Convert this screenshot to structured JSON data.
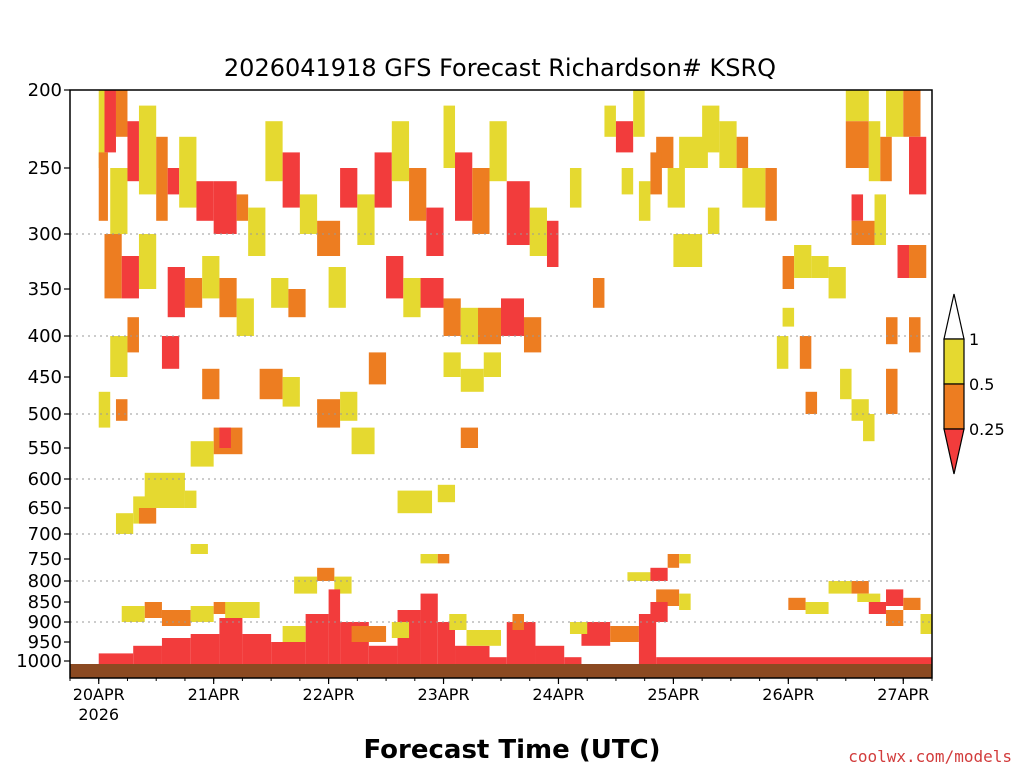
{
  "chart_data": {
    "type": "heatmap",
    "title": "2026041918 GFS Forecast Richardson# KSRQ",
    "xlabel": "Forecast Time (UTC)",
    "ylabel": "",
    "x_ticks": [
      {
        "label": "20APR",
        "sub": "2026",
        "day": 0
      },
      {
        "label": "21APR",
        "sub": "",
        "day": 1
      },
      {
        "label": "22APR",
        "sub": "",
        "day": 2
      },
      {
        "label": "23APR",
        "sub": "",
        "day": 3
      },
      {
        "label": "24APR",
        "sub": "",
        "day": 4
      },
      {
        "label": "25APR",
        "sub": "",
        "day": 5
      },
      {
        "label": "26APR",
        "sub": "",
        "day": 6
      },
      {
        "label": "27APR",
        "sub": "",
        "day": 7
      }
    ],
    "x_start_day": -0.25,
    "x_end_day": 7.25,
    "y_scale": "pressure (inverted, log-like)",
    "y_ticks": [
      200,
      250,
      300,
      350,
      400,
      450,
      500,
      550,
      600,
      650,
      700,
      750,
      800,
      850,
      900,
      950,
      1000
    ],
    "gridlines_at": [
      300,
      400,
      500,
      600,
      700,
      800,
      900
    ],
    "legend": {
      "placement": "right",
      "labels": [
        "1",
        "0.5",
        "0.25"
      ],
      "bins": [
        {
          "range": "0.5-1",
          "color": "#e5d930"
        },
        {
          "range": "0.25-0.5",
          "color": "#ed7d21"
        },
        {
          "range": "<0.25",
          "color": "#f23c3c"
        }
      ]
    },
    "colors": {
      "yellow": "#e5d930",
      "orange": "#ed7d21",
      "red": "#f23c3c",
      "ground": "#8b4a22"
    },
    "cells": [
      [
        0.0,
        200,
        0.05,
        250,
        "yellow"
      ],
      [
        0.05,
        200,
        0.15,
        240,
        "red"
      ],
      [
        0.15,
        200,
        0.25,
        230,
        "orange"
      ],
      [
        0.0,
        240,
        0.08,
        290,
        "orange"
      ],
      [
        0.1,
        250,
        0.25,
        300,
        "yellow"
      ],
      [
        0.25,
        220,
        0.35,
        260,
        "red"
      ],
      [
        0.35,
        210,
        0.5,
        270,
        "yellow"
      ],
      [
        0.5,
        230,
        0.6,
        290,
        "orange"
      ],
      [
        0.6,
        250,
        0.7,
        270,
        "red"
      ],
      [
        0.7,
        230,
        0.85,
        280,
        "yellow"
      ],
      [
        0.85,
        260,
        1.0,
        290,
        "red"
      ],
      [
        1.0,
        260,
        1.2,
        300,
        "red"
      ],
      [
        1.2,
        270,
        1.3,
        290,
        "orange"
      ],
      [
        1.3,
        280,
        1.45,
        320,
        "yellow"
      ],
      [
        1.45,
        220,
        1.6,
        260,
        "yellow"
      ],
      [
        1.6,
        240,
        1.75,
        280,
        "red"
      ],
      [
        1.75,
        270,
        1.9,
        300,
        "yellow"
      ],
      [
        1.9,
        290,
        2.1,
        320,
        "orange"
      ],
      [
        2.1,
        250,
        2.25,
        280,
        "red"
      ],
      [
        2.25,
        270,
        2.4,
        310,
        "yellow"
      ],
      [
        2.4,
        240,
        2.55,
        280,
        "red"
      ],
      [
        2.55,
        220,
        2.7,
        260,
        "yellow"
      ],
      [
        2.7,
        250,
        2.85,
        290,
        "orange"
      ],
      [
        2.85,
        280,
        3.0,
        320,
        "red"
      ],
      [
        3.0,
        210,
        3.1,
        250,
        "yellow"
      ],
      [
        3.1,
        240,
        3.25,
        290,
        "red"
      ],
      [
        3.25,
        250,
        3.4,
        300,
        "orange"
      ],
      [
        3.4,
        220,
        3.55,
        260,
        "yellow"
      ],
      [
        3.55,
        260,
        3.75,
        310,
        "red"
      ],
      [
        3.75,
        280,
        3.9,
        320,
        "yellow"
      ],
      [
        0.05,
        300,
        0.2,
        360,
        "orange"
      ],
      [
        0.2,
        320,
        0.35,
        360,
        "red"
      ],
      [
        0.35,
        300,
        0.5,
        350,
        "yellow"
      ],
      [
        0.6,
        330,
        0.75,
        380,
        "red"
      ],
      [
        0.75,
        340,
        0.9,
        370,
        "orange"
      ],
      [
        0.9,
        320,
        1.05,
        360,
        "yellow"
      ],
      [
        1.05,
        340,
        1.2,
        380,
        "orange"
      ],
      [
        1.2,
        360,
        1.35,
        400,
        "yellow"
      ],
      [
        1.5,
        340,
        1.65,
        370,
        "yellow"
      ],
      [
        1.65,
        350,
        1.8,
        380,
        "orange"
      ],
      [
        2.0,
        330,
        2.15,
        370,
        "yellow"
      ],
      [
        2.5,
        320,
        2.65,
        360,
        "red"
      ],
      [
        2.65,
        340,
        2.8,
        380,
        "yellow"
      ],
      [
        2.8,
        340,
        3.0,
        370,
        "red"
      ],
      [
        3.0,
        360,
        3.15,
        400,
        "orange"
      ],
      [
        3.15,
        370,
        3.3,
        410,
        "yellow"
      ],
      [
        3.3,
        370,
        3.5,
        410,
        "orange"
      ],
      [
        3.5,
        360,
        3.7,
        400,
        "red"
      ],
      [
        3.7,
        380,
        3.85,
        420,
        "orange"
      ],
      [
        0.1,
        400,
        0.25,
        450,
        "yellow"
      ],
      [
        0.25,
        380,
        0.35,
        420,
        "orange"
      ],
      [
        0.55,
        400,
        0.7,
        440,
        "red"
      ],
      [
        0.9,
        440,
        1.05,
        480,
        "orange"
      ],
      [
        1.4,
        440,
        1.6,
        480,
        "orange"
      ],
      [
        1.6,
        450,
        1.75,
        490,
        "yellow"
      ],
      [
        1.9,
        480,
        2.1,
        520,
        "orange"
      ],
      [
        2.1,
        470,
        2.25,
        510,
        "yellow"
      ],
      [
        2.35,
        420,
        2.5,
        460,
        "orange"
      ],
      [
        3.0,
        420,
        3.15,
        450,
        "yellow"
      ],
      [
        3.15,
        440,
        3.35,
        470,
        "yellow"
      ],
      [
        3.35,
        420,
        3.5,
        450,
        "yellow"
      ],
      [
        0.0,
        470,
        0.1,
        520,
        "yellow"
      ],
      [
        0.15,
        480,
        0.25,
        510,
        "orange"
      ],
      [
        1.0,
        520,
        1.25,
        560,
        "orange"
      ],
      [
        1.05,
        520,
        1.15,
        550,
        "red"
      ],
      [
        0.8,
        540,
        1.0,
        580,
        "yellow"
      ],
      [
        2.2,
        520,
        2.4,
        560,
        "yellow"
      ],
      [
        3.15,
        520,
        3.3,
        550,
        "orange"
      ],
      [
        0.4,
        590,
        0.75,
        650,
        "yellow"
      ],
      [
        0.3,
        630,
        0.45,
        680,
        "yellow"
      ],
      [
        0.35,
        650,
        0.5,
        680,
        "orange"
      ],
      [
        0.75,
        620,
        0.85,
        650,
        "yellow"
      ],
      [
        2.6,
        620,
        2.9,
        660,
        "yellow"
      ],
      [
        2.95,
        610,
        3.1,
        640,
        "yellow"
      ],
      [
        0.15,
        660,
        0.3,
        700,
        "yellow"
      ],
      [
        0.8,
        720,
        0.95,
        740,
        "yellow"
      ],
      [
        2.8,
        740,
        2.95,
        760,
        "yellow"
      ],
      [
        2.95,
        740,
        3.05,
        760,
        "orange"
      ],
      [
        4.6,
        780,
        4.8,
        800,
        "yellow"
      ],
      [
        4.8,
        770,
        4.95,
        800,
        "red"
      ],
      [
        4.95,
        740,
        5.05,
        770,
        "orange"
      ],
      [
        5.05,
        740,
        5.15,
        760,
        "yellow"
      ],
      [
        4.85,
        820,
        5.05,
        860,
        "orange"
      ],
      [
        4.8,
        850,
        4.95,
        900,
        "red"
      ],
      [
        5.05,
        830,
        5.15,
        870,
        "yellow"
      ],
      [
        1.7,
        790,
        1.9,
        830,
        "yellow"
      ],
      [
        1.9,
        770,
        2.05,
        800,
        "orange"
      ],
      [
        2.05,
        790,
        2.2,
        830,
        "yellow"
      ],
      [
        0.4,
        850,
        0.55,
        890,
        "orange"
      ],
      [
        0.55,
        870,
        0.8,
        910,
        "orange"
      ],
      [
        0.8,
        860,
        1.0,
        900,
        "yellow"
      ],
      [
        1.0,
        850,
        1.15,
        880,
        "orange"
      ],
      [
        6.0,
        840,
        6.15,
        870,
        "orange"
      ],
      [
        6.15,
        850,
        6.35,
        880,
        "yellow"
      ],
      [
        6.35,
        800,
        6.55,
        830,
        "yellow"
      ],
      [
        6.55,
        800,
        6.7,
        830,
        "orange"
      ],
      [
        6.7,
        850,
        6.85,
        880,
        "red"
      ],
      [
        6.85,
        820,
        7.0,
        860,
        "red"
      ],
      [
        7.0,
        840,
        7.15,
        870,
        "orange"
      ],
      [
        6.6,
        830,
        6.8,
        850,
        "yellow"
      ],
      [
        7.15,
        880,
        7.25,
        930,
        "yellow"
      ],
      [
        6.85,
        870,
        7.0,
        910,
        "orange"
      ],
      [
        6.5,
        200,
        6.7,
        220,
        "yellow"
      ],
      [
        6.5,
        220,
        6.7,
        250,
        "orange"
      ],
      [
        6.7,
        220,
        6.8,
        260,
        "yellow"
      ],
      [
        6.85,
        200,
        7.0,
        230,
        "yellow"
      ],
      [
        7.0,
        200,
        7.15,
        230,
        "orange"
      ],
      [
        7.05,
        230,
        7.2,
        270,
        "red"
      ],
      [
        6.8,
        230,
        6.9,
        260,
        "orange"
      ],
      [
        6.55,
        270,
        6.65,
        290,
        "red"
      ],
      [
        6.55,
        290,
        6.75,
        310,
        "orange"
      ],
      [
        6.75,
        270,
        6.85,
        310,
        "yellow"
      ],
      [
        6.95,
        310,
        7.05,
        340,
        "red"
      ],
      [
        7.05,
        310,
        7.2,
        340,
        "orange"
      ],
      [
        7.05,
        380,
        7.15,
        420,
        "orange"
      ],
      [
        6.85,
        380,
        6.95,
        410,
        "orange"
      ],
      [
        6.85,
        440,
        6.95,
        500,
        "orange"
      ],
      [
        6.55,
        480,
        6.7,
        510,
        "yellow"
      ],
      [
        6.65,
        500,
        6.75,
        540,
        "yellow"
      ],
      [
        6.15,
        470,
        6.25,
        500,
        "orange"
      ],
      [
        6.45,
        440,
        6.55,
        480,
        "yellow"
      ],
      [
        6.1,
        400,
        6.2,
        440,
        "orange"
      ],
      [
        5.9,
        400,
        6.0,
        440,
        "yellow"
      ],
      [
        5.95,
        370,
        6.05,
        390,
        "yellow"
      ],
      [
        5.95,
        320,
        6.05,
        350,
        "orange"
      ],
      [
        6.05,
        310,
        6.2,
        340,
        "yellow"
      ],
      [
        6.2,
        320,
        6.35,
        340,
        "yellow"
      ],
      [
        6.35,
        330,
        6.5,
        360,
        "yellow"
      ],
      [
        5.8,
        250,
        5.9,
        290,
        "orange"
      ],
      [
        5.6,
        250,
        5.8,
        280,
        "yellow"
      ],
      [
        5.4,
        220,
        5.55,
        250,
        "yellow"
      ],
      [
        5.55,
        230,
        5.65,
        250,
        "orange"
      ],
      [
        5.3,
        280,
        5.4,
        300,
        "yellow"
      ],
      [
        5.0,
        300,
        5.25,
        330,
        "yellow"
      ],
      [
        4.85,
        230,
        5.0,
        250,
        "orange"
      ],
      [
        5.05,
        230,
        5.3,
        250,
        "yellow"
      ],
      [
        4.4,
        210,
        4.5,
        230,
        "yellow"
      ],
      [
        4.5,
        220,
        4.65,
        240,
        "red"
      ],
      [
        4.65,
        200,
        4.75,
        230,
        "yellow"
      ],
      [
        4.55,
        250,
        4.65,
        270,
        "yellow"
      ],
      [
        4.7,
        260,
        4.8,
        290,
        "yellow"
      ],
      [
        4.8,
        240,
        4.9,
        270,
        "orange"
      ],
      [
        4.95,
        250,
        5.1,
        280,
        "yellow"
      ],
      [
        5.25,
        210,
        5.4,
        240,
        "yellow"
      ],
      [
        4.1,
        250,
        4.2,
        280,
        "yellow"
      ],
      [
        4.3,
        340,
        4.4,
        370,
        "orange"
      ],
      [
        3.9,
        290,
        4.0,
        330,
        "red"
      ]
    ],
    "low_level_band": {
      "top_hpa": 820,
      "bottom_hpa": 1010,
      "segments": [
        [
          0.0,
          980,
          0.3,
          1010,
          "red"
        ],
        [
          0.3,
          960,
          0.55,
          1010,
          "red"
        ],
        [
          0.55,
          940,
          0.8,
          1010,
          "red"
        ],
        [
          0.8,
          930,
          1.05,
          1010,
          "red"
        ],
        [
          1.05,
          890,
          1.25,
          1010,
          "red"
        ],
        [
          1.25,
          930,
          1.5,
          1010,
          "red"
        ],
        [
          1.5,
          950,
          1.8,
          1010,
          "red"
        ],
        [
          1.8,
          880,
          2.0,
          1010,
          "red"
        ],
        [
          2.0,
          820,
          2.1,
          1010,
          "red"
        ],
        [
          2.1,
          900,
          2.35,
          1010,
          "red"
        ],
        [
          2.35,
          960,
          2.6,
          1010,
          "red"
        ],
        [
          2.6,
          870,
          2.8,
          1010,
          "red"
        ],
        [
          2.8,
          830,
          2.95,
          1010,
          "red"
        ],
        [
          2.95,
          900,
          3.1,
          1010,
          "red"
        ],
        [
          3.1,
          960,
          3.4,
          1010,
          "red"
        ],
        [
          3.4,
          990,
          3.55,
          1010,
          "red"
        ],
        [
          3.55,
          900,
          3.8,
          1010,
          "red"
        ],
        [
          3.8,
          960,
          4.05,
          1010,
          "red"
        ],
        [
          4.05,
          990,
          4.2,
          1010,
          "red"
        ],
        [
          4.2,
          900,
          4.45,
          960,
          "red"
        ],
        [
          4.45,
          910,
          4.7,
          950,
          "orange"
        ],
        [
          4.7,
          880,
          4.85,
          1010,
          "red"
        ],
        [
          4.85,
          990,
          7.25,
          1010,
          "red"
        ],
        [
          0.2,
          860,
          0.4,
          900,
          "yellow"
        ],
        [
          1.1,
          850,
          1.4,
          890,
          "yellow"
        ],
        [
          1.6,
          910,
          1.8,
          950,
          "yellow"
        ],
        [
          2.2,
          910,
          2.5,
          950,
          "orange"
        ],
        [
          2.55,
          900,
          2.7,
          940,
          "yellow"
        ],
        [
          3.05,
          880,
          3.2,
          920,
          "yellow"
        ],
        [
          3.2,
          920,
          3.5,
          960,
          "yellow"
        ],
        [
          3.6,
          880,
          3.7,
          920,
          "orange"
        ],
        [
          4.1,
          900,
          4.25,
          930,
          "yellow"
        ]
      ]
    }
  },
  "credit": "coolwx.com/models"
}
